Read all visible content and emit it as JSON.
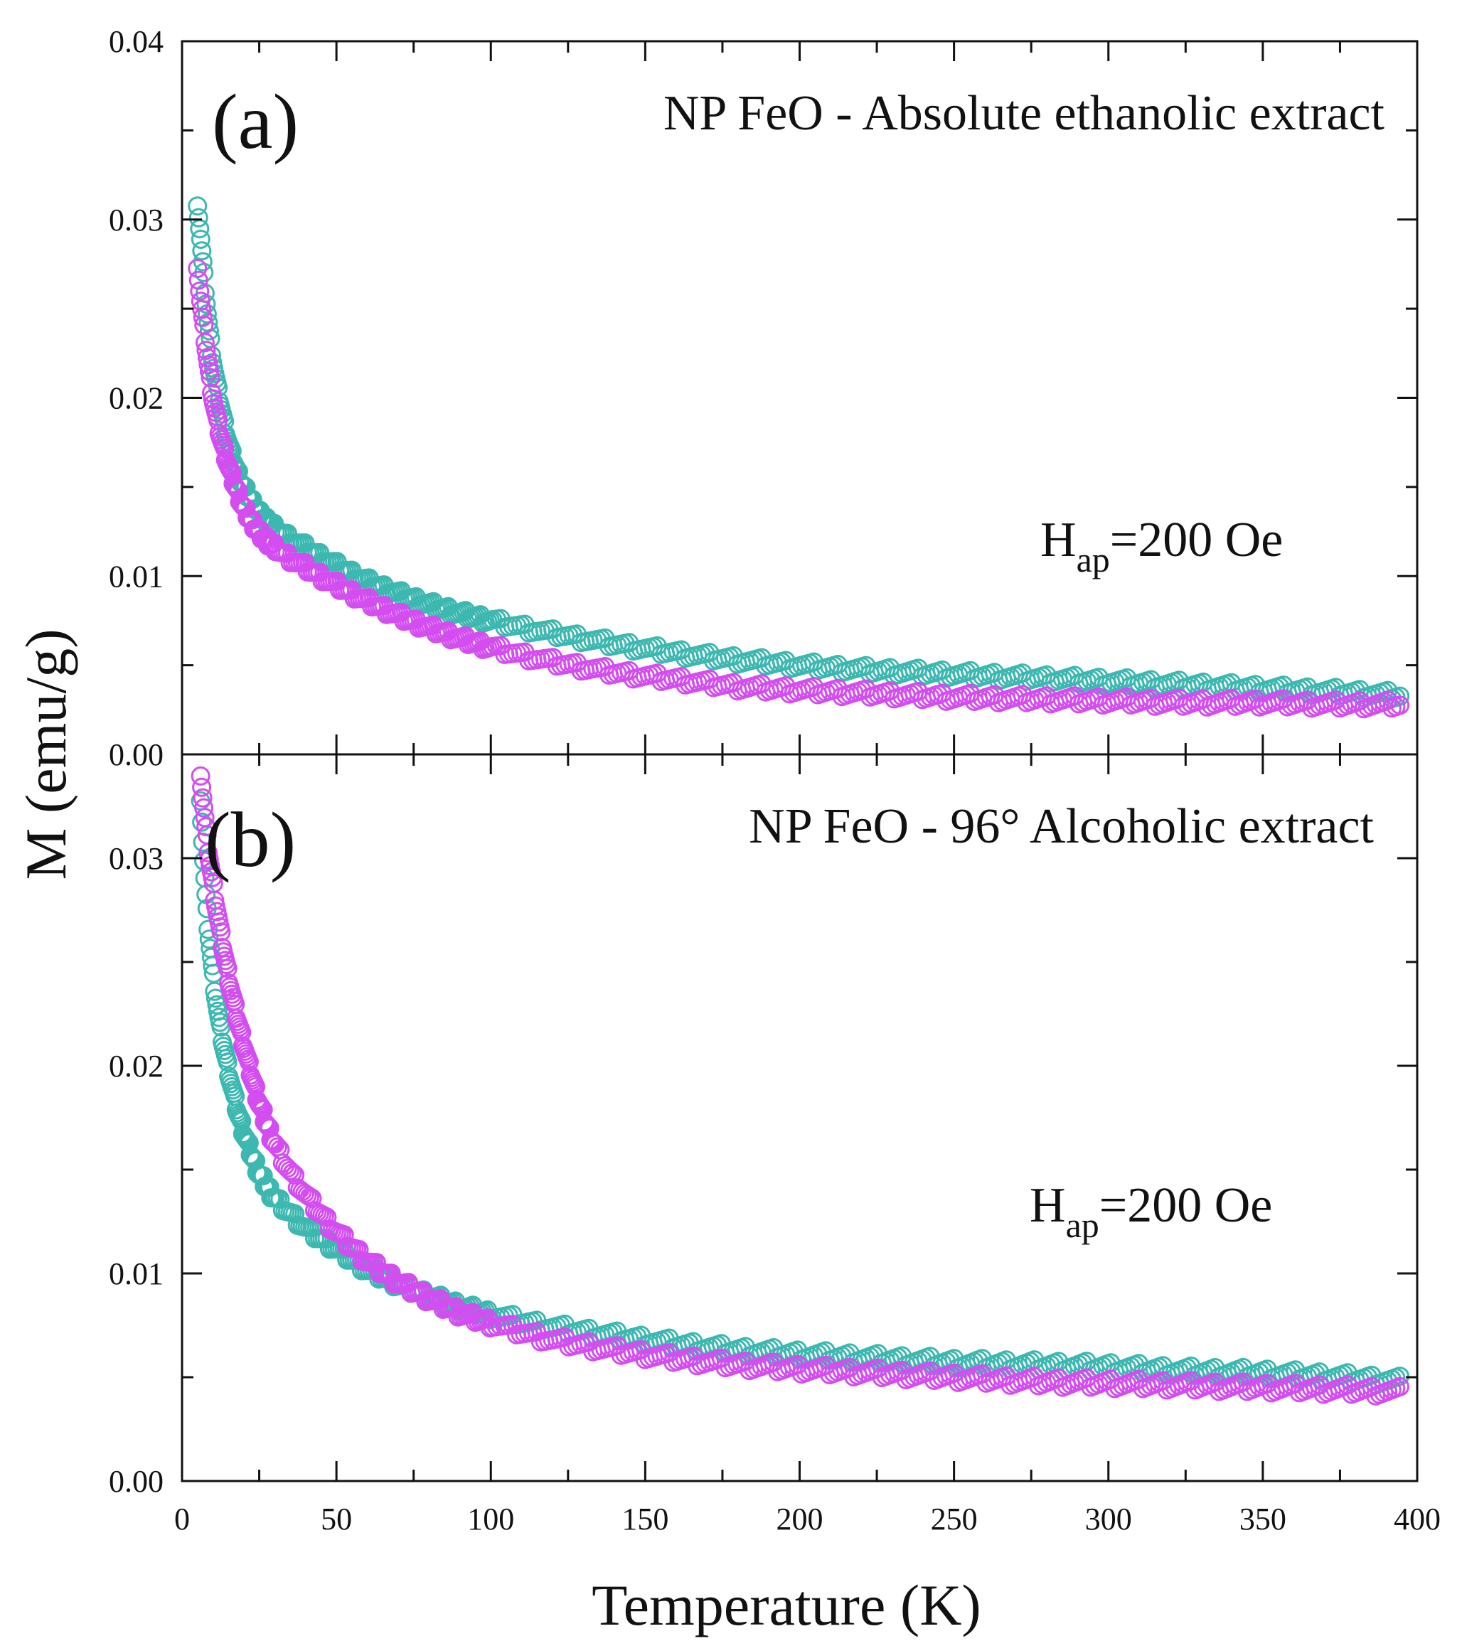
{
  "chart_data": [
    {
      "type": "scatter",
      "panel_label": "(a)",
      "title": "NP FeO - Absolute ethanolic extract",
      "annotation": {
        "main": "H",
        "sub": "ap",
        "rest": "=200 Oe"
      },
      "xlabel": "",
      "ylabel": "M (emu/g)",
      "xlim": [
        0,
        400
      ],
      "ylim": [
        0,
        0.04
      ],
      "yticks": [
        "0.00",
        "0.01",
        "0.02",
        "0.03",
        "0.04"
      ],
      "ytick_values": [
        0,
        0.01,
        0.02,
        0.03,
        0.04
      ],
      "marker": "open-circle",
      "series": [
        {
          "name": "teal",
          "color": "#3cb8b0",
          "x": [
            5,
            6,
            7,
            8,
            10,
            12,
            15,
            18,
            20,
            25,
            30,
            35,
            40,
            50,
            60,
            70,
            80,
            90,
            100,
            120,
            140,
            160,
            180,
            200,
            225,
            250,
            275,
            300,
            325,
            350,
            375,
            395
          ],
          "y": [
            0.031,
            0.029,
            0.027,
            0.025,
            0.022,
            0.02,
            0.0175,
            0.0158,
            0.015,
            0.0135,
            0.0127,
            0.0121,
            0.0116,
            0.0106,
            0.0097,
            0.009,
            0.0084,
            0.0079,
            0.0075,
            0.0068,
            0.0062,
            0.0057,
            0.0053,
            0.005,
            0.0047,
            0.0045,
            0.0043,
            0.0041,
            0.0039,
            0.0037,
            0.0035,
            0.0033
          ]
        },
        {
          "name": "magenta",
          "color": "#d34df0",
          "x": [
            5,
            6,
            7,
            8,
            10,
            12,
            15,
            18,
            20,
            25,
            30,
            35,
            40,
            50,
            60,
            70,
            80,
            90,
            100,
            120,
            140,
            160,
            180,
            200,
            225,
            250,
            275,
            300,
            325,
            350,
            375,
            395
          ],
          "y": [
            0.0275,
            0.0255,
            0.024,
            0.0225,
            0.02,
            0.0182,
            0.0162,
            0.0147,
            0.0138,
            0.0124,
            0.0116,
            0.011,
            0.0105,
            0.0095,
            0.0086,
            0.0078,
            0.0071,
            0.0065,
            0.006,
            0.0052,
            0.0046,
            0.0042,
            0.0038,
            0.0036,
            0.0034,
            0.0032,
            0.0031,
            0.003,
            0.0029,
            0.0029,
            0.0028,
            0.0028
          ]
        }
      ]
    },
    {
      "type": "scatter",
      "panel_label": "(b)",
      "title": "NP FeO - 96° Alcoholic extract",
      "annotation": {
        "main": "H",
        "sub": "ap",
        "rest": "=200 Oe"
      },
      "xlabel": "Temperature (K)",
      "ylabel": "M (emu/g)",
      "xlim": [
        0,
        400
      ],
      "ylim": [
        0,
        0.035
      ],
      "xticks": [
        "0",
        "50",
        "100",
        "150",
        "200",
        "250",
        "300",
        "350",
        "400"
      ],
      "xtick_values": [
        0,
        50,
        100,
        150,
        200,
        250,
        300,
        350,
        400
      ],
      "yticks": [
        "0.00",
        "0.01",
        "0.02",
        "0.03"
      ],
      "ytick_values": [
        0,
        0.01,
        0.02,
        0.03
      ],
      "marker": "open-circle",
      "series": [
        {
          "name": "teal",
          "color": "#3cb8b0",
          "x": [
            6,
            7,
            8,
            10,
            12,
            15,
            18,
            20,
            25,
            30,
            35,
            40,
            50,
            60,
            70,
            80,
            90,
            100,
            120,
            140,
            160,
            180,
            200,
            225,
            250,
            275,
            300,
            325,
            350,
            375,
            395
          ],
          "y": [
            0.033,
            0.03,
            0.0275,
            0.0245,
            0.0222,
            0.0198,
            0.0178,
            0.0168,
            0.0148,
            0.0136,
            0.0129,
            0.0122,
            0.0112,
            0.0102,
            0.0095,
            0.0089,
            0.0084,
            0.008,
            0.0074,
            0.007,
            0.0066,
            0.0063,
            0.0061,
            0.0059,
            0.0057,
            0.0056,
            0.0055,
            0.0053,
            0.0052,
            0.005,
            0.0048
          ]
        },
        {
          "name": "magenta",
          "color": "#d34df0",
          "x": [
            6,
            7,
            8,
            10,
            12,
            15,
            18,
            20,
            25,
            30,
            35,
            40,
            50,
            60,
            70,
            80,
            90,
            100,
            120,
            140,
            160,
            180,
            200,
            225,
            250,
            275,
            300,
            325,
            350,
            375,
            395
          ],
          "y": [
            0.0342,
            0.0325,
            0.031,
            0.0288,
            0.0268,
            0.0243,
            0.0222,
            0.021,
            0.0182,
            0.0162,
            0.0149,
            0.0138,
            0.012,
            0.0106,
            0.0096,
            0.0088,
            0.0081,
            0.0076,
            0.0068,
            0.0063,
            0.0059,
            0.0056,
            0.0054,
            0.0052,
            0.005,
            0.0048,
            0.0047,
            0.0046,
            0.0045,
            0.0044,
            0.0043
          ]
        }
      ]
    }
  ]
}
